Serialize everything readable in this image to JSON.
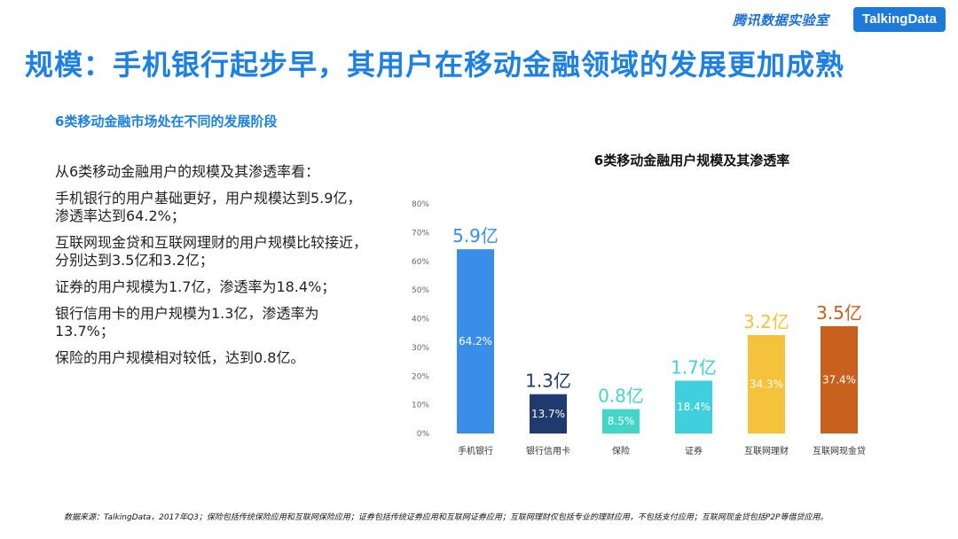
{
  "header": {
    "brand_cn": "腾讯数据实验室",
    "brand_logo": "TalkingData"
  },
  "title": "规模：手机银行起步早，其用户在移动金融领域的发展更加成熟",
  "subtitle": "6类移动金融市场处在不同的发展阶段",
  "bullets": [
    "从6类移动金融用户的规模及其渗透率看：",
    "手机银行的用户基础更好，用户规模达到5.9亿，渗透率达到64.2%；",
    "互联网现金贷和互联网理财的用户规模比较接近，分别达到3.5亿和3.2亿；",
    "证券的用户规模为1.7亿，渗透率为18.4%；",
    "银行信用卡的用户规模为1.3亿，渗透率为13.7%；",
    "保险的用户规模相对较低，达到0.8亿。"
  ],
  "footer": "数据来源：TalkingData，2017年Q3；保险包括传统保险应用和互联网保险应用；证券包括传统证券应用和互联网证券应用；互联网理财仅包括专业的理财应用，不包括支付应用；互联网现金贷包括P2P等借贷应用。",
  "colors": {
    "accent": "#1d80e2",
    "bars": [
      "#3a8ee8",
      "#1f3a6e",
      "#43d5c8",
      "#40cfdc",
      "#f5c23c",
      "#c8601e"
    ]
  },
  "chart_data": {
    "type": "bar",
    "title": "6类移动金融用户规模及其渗透率",
    "categories": [
      "手机银行",
      "银行信用卡",
      "保险",
      "证券",
      "互联网理财",
      "互联网现金贷"
    ],
    "values": [
      64.2,
      13.7,
      8.5,
      18.4,
      34.3,
      37.4
    ],
    "value_labels": [
      "64.2%",
      "13.7%",
      "8.5%",
      "18.4%",
      "34.3%",
      "37.4%"
    ],
    "user_scale": [
      "5.9亿",
      "1.3亿",
      "0.8亿",
      "1.7亿",
      "3.2亿",
      "3.5亿"
    ],
    "ylim": [
      0,
      80
    ],
    "yticks": [
      0,
      10,
      20,
      30,
      40,
      50,
      60,
      70,
      80
    ],
    "ytick_labels": [
      "0%",
      "10%",
      "20%",
      "30%",
      "40%",
      "50%",
      "60%",
      "70%",
      "80%"
    ],
    "grid": false
  }
}
